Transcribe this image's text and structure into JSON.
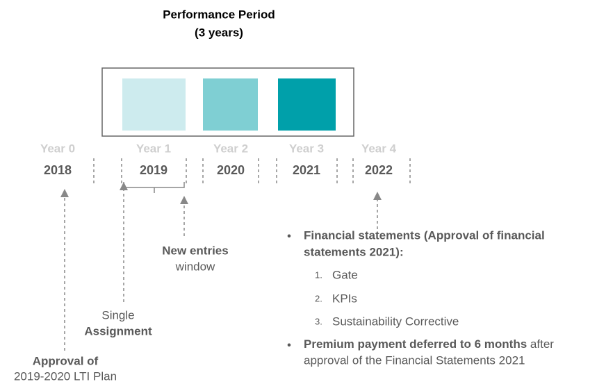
{
  "title": [
    "Performance Period",
    "(3 years)"
  ],
  "timeline": [
    {
      "label": "Year 0",
      "year": "2018"
    },
    {
      "label": "Year 1",
      "year": "2019"
    },
    {
      "label": "Year 2",
      "year": "2020"
    },
    {
      "label": "Year 3",
      "year": "2021"
    },
    {
      "label": "Year 4",
      "year": "2022"
    }
  ],
  "annotations": {
    "new_entries": [
      "New entries",
      "window"
    ],
    "single": [
      "Single",
      "Assignment"
    ],
    "approval": [
      "Approval of",
      "2019-2020 LTI Plan"
    ]
  },
  "notes": {
    "bullet1": [
      "Financial  statements (Approval of financial",
      "statements 2021):"
    ],
    "items": [
      {
        "number": "1.",
        "text": "Gate"
      },
      {
        "number": "2.",
        "text": "KPIs"
      },
      {
        "number": "3.",
        "text": "Sustainability Corrective"
      }
    ],
    "bullet2_bold": "Premium payment deferred to 6 months",
    "bullet2_rest": "after",
    "bullet2_line2": "approval of the Financial Statements 2021"
  }
}
